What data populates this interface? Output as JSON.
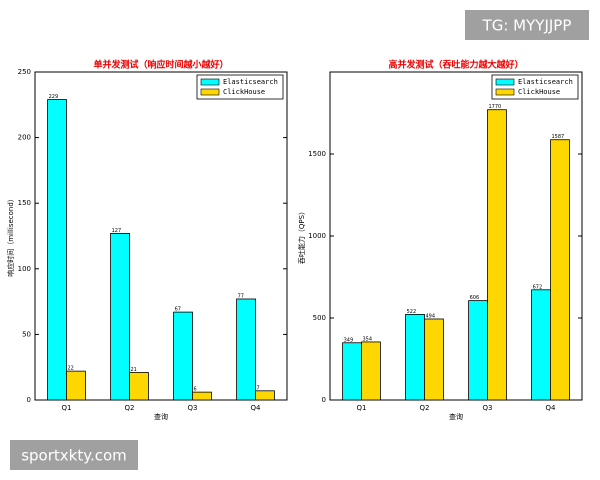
{
  "chart_data": [
    {
      "type": "bar",
      "title": "单并发测试（响应时间越小越好）",
      "x_label": "查询",
      "y_label": "响应时间（millisecond）",
      "categories": [
        "Q1",
        "Q2",
        "Q3",
        "Q4"
      ],
      "series": [
        {
          "name": "Elasticsearch",
          "color": "#00ffff",
          "values": [
            229,
            127,
            67,
            77
          ]
        },
        {
          "name": "ClickHouse",
          "color": "#ffd700",
          "values": [
            22,
            21,
            6,
            7
          ]
        }
      ],
      "ylim": [
        0,
        250
      ],
      "yticks": [
        0,
        50,
        100,
        150,
        200,
        250
      ],
      "legend": "upper right"
    },
    {
      "type": "bar",
      "title": "高并发测试（吞吐能力越大越好）",
      "x_label": "查询",
      "y_label": "吞吐能力（QPS）",
      "categories": [
        "Q1",
        "Q2",
        "Q3",
        "Q4"
      ],
      "series": [
        {
          "name": "Elasticsearch",
          "color": "#00ffff",
          "values": [
            349,
            522,
            606,
            672
          ]
        },
        {
          "name": "ClickHouse",
          "color": "#ffd700",
          "values": [
            354,
            494,
            1770,
            1587
          ]
        }
      ],
      "ylim": [
        0,
        2000
      ],
      "yticks": [
        0,
        500,
        1000,
        1500
      ],
      "legend": "upper right"
    }
  ],
  "watermarks": {
    "top_right": "TG: MYYJJPP",
    "bottom_left": "sportxkty.com"
  }
}
